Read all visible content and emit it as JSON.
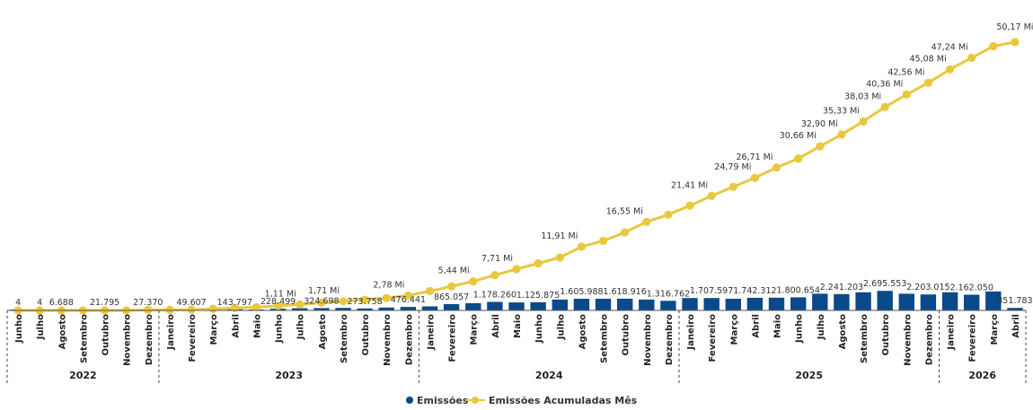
{
  "chart_data": {
    "type": "bar",
    "legend_position": "bottom-center",
    "grid": false,
    "years": [
      {
        "label": "2022",
        "months": 7
      },
      {
        "label": "2023",
        "months": 12
      },
      {
        "label": "2024",
        "months": 12
      },
      {
        "label": "2025",
        "months": 12
      },
      {
        "label": "2026",
        "months": 4
      }
    ],
    "categories": [
      "Junho",
      "Julho",
      "Agosto",
      "Setembro",
      "Outubro",
      "Novembro",
      "Dezembro",
      "Janeiro",
      "Fevereiro",
      "Março",
      "Abril",
      "Maio",
      "Junho",
      "Julho",
      "Agosto",
      "Setembro",
      "Outubro",
      "Novembro",
      "Dezembro",
      "Janeiro",
      "Fevereiro",
      "Março",
      "Abril",
      "Maio",
      "Junho",
      "Julho",
      "Agosto",
      "Setembro",
      "Outubro",
      "Novembro",
      "Dezembro",
      "Janeiro",
      "Fevereiro",
      "Março",
      "Abril",
      "Maio",
      "Junho",
      "Julho",
      "Agosto",
      "Setembro",
      "Outubro",
      "Novembro",
      "Dezembro",
      "Janeiro",
      "Fevereiro",
      "Março",
      "Abril"
    ],
    "series": [
      {
        "name": "Emissões",
        "color": "#0a4a8a",
        "values": [
          4,
          4,
          6688,
          2000,
          21795,
          5000,
          27370,
          10000,
          49607,
          30000,
          143797,
          90000,
          228499,
          300000,
          324698,
          350000,
          273758,
          400000,
          476441,
          560000,
          865057,
          1000000,
          1178260,
          1100000,
          1125875,
          1500000,
          1605988,
          1600000,
          1618916,
          1500000,
          1316762,
          1700000,
          1707597,
          1600000,
          1742312,
          1750000,
          1800654,
          2300000,
          2241203,
          2500000,
          2695553,
          2300000,
          2203015,
          2500000,
          2162050,
          2600000,
          351783
        ],
        "labels": [
          "4",
          "4",
          "6.688",
          "",
          "21.795",
          "",
          "27.370",
          "",
          "49.607",
          "",
          "143.797",
          "",
          "228.499",
          "",
          "324.698",
          "",
          "273.758",
          "",
          "476.441",
          "",
          "865.057",
          "",
          "1.178.260",
          "",
          "1.125.875",
          "",
          "1.605.988",
          "",
          "1.618.916",
          "",
          "1.316.762",
          "",
          "1.707.597",
          "",
          "1.742.312",
          "",
          "1.800.654",
          "",
          "2.241.203",
          "",
          "2.695.553",
          "",
          "2.203.015",
          "",
          "2.162.050",
          "",
          "351.783"
        ]
      },
      {
        "name": "Emissões Acumuladas Mês",
        "color": "#e8c840",
        "values": [
          0,
          0,
          0,
          0,
          0,
          0,
          0.1,
          0.1,
          0.15,
          0.3,
          0.45,
          0.6,
          0.85,
          1.11,
          1.45,
          1.71,
          2.0,
          2.3,
          2.78,
          3.6,
          4.5,
          5.44,
          6.6,
          7.71,
          8.8,
          9.9,
          11.91,
          13.0,
          14.6,
          16.55,
          17.9,
          19.6,
          21.41,
          23.1,
          24.79,
          26.71,
          28.4,
          30.66,
          32.9,
          35.33,
          38.03,
          40.36,
          42.56,
          45.08,
          47.24,
          49.4,
          50.17
        ],
        "labels": [
          "",
          "",
          "",
          "",
          "",
          "",
          "",
          "",
          "",
          "",
          "",
          "",
          "",
          "1,11 Mi",
          "",
          "1,71 Mi",
          "",
          "",
          "2,78 Mi",
          "",
          "",
          "5,44 Mi",
          "",
          "7,71 Mi",
          "",
          "",
          "11,91 Mi",
          "",
          "",
          "16,55 Mi",
          "",
          "",
          "21,41 Mi",
          "",
          "24,79 Mi",
          "26,71 Mi",
          "",
          "30,66 Mi",
          "32,90 Mi",
          "35,33 Mi",
          "38,03 Mi",
          "40,36 Mi",
          "42,56 Mi",
          "45,08 Mi",
          "47,24 Mi",
          "",
          "50,17 Mi"
        ]
      }
    ],
    "ylim_bars": [
      0,
      20000000
    ],
    "ylim_line": [
      0,
      52
    ]
  }
}
